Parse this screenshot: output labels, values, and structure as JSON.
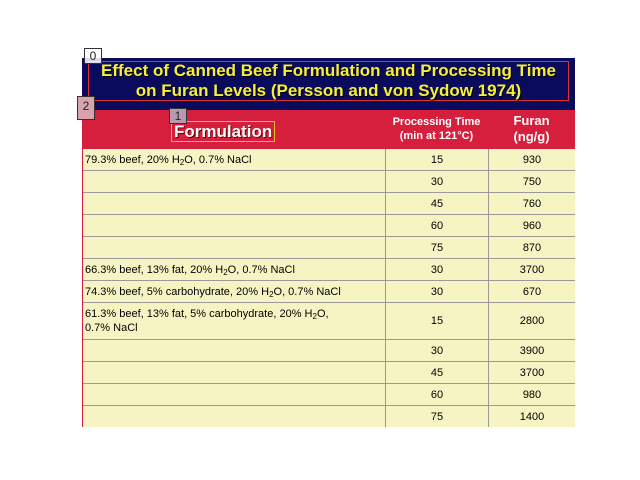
{
  "title": {
    "line1": "Effect of Canned Beef Formulation and Processing Time",
    "line2": "on Furan Levels (Persson and von Sydow 1974)"
  },
  "headers": {
    "formulation": "Formulation",
    "time_line1": "Processing Time",
    "time_line2": "(min at 121°C)",
    "furan_line1": "Furan",
    "furan_line2": "(ng/g)"
  },
  "markers": [
    "0",
    "1",
    "2"
  ],
  "rows": [
    {
      "formulation": [
        "79.3% beef, 20% H",
        "2",
        "O, 0.7% NaCl"
      ],
      "time": "15",
      "furan": "930"
    },
    {
      "formulation": [],
      "time": "30",
      "furan": "750"
    },
    {
      "formulation": [],
      "time": "45",
      "furan": "760"
    },
    {
      "formulation": [],
      "time": "60",
      "furan": "960"
    },
    {
      "formulation": [],
      "time": "75",
      "furan": "870"
    },
    {
      "formulation": [
        "66.3% beef, 13% fat, 20% H",
        "2",
        "O, 0.7% NaCl"
      ],
      "time": "30",
      "furan": "3700"
    },
    {
      "formulation": [
        "74.3% beef, 5% carbohydrate, 20% H",
        "2",
        "O, 0.7% NaCl"
      ],
      "time": "30",
      "furan": "670"
    },
    {
      "formulation": [
        "61.3% beef, 13% fat, 5% carbohydrate, 20% H",
        "2",
        "O,",
        "0.7% NaCl"
      ],
      "time": "15",
      "furan": "2800"
    },
    {
      "formulation": [],
      "time": "30",
      "furan": "3900"
    },
    {
      "formulation": [],
      "time": "45",
      "furan": "3700"
    },
    {
      "formulation": [],
      "time": "60",
      "furan": "980"
    },
    {
      "formulation": [],
      "time": "75",
      "furan": "1400"
    }
  ]
}
